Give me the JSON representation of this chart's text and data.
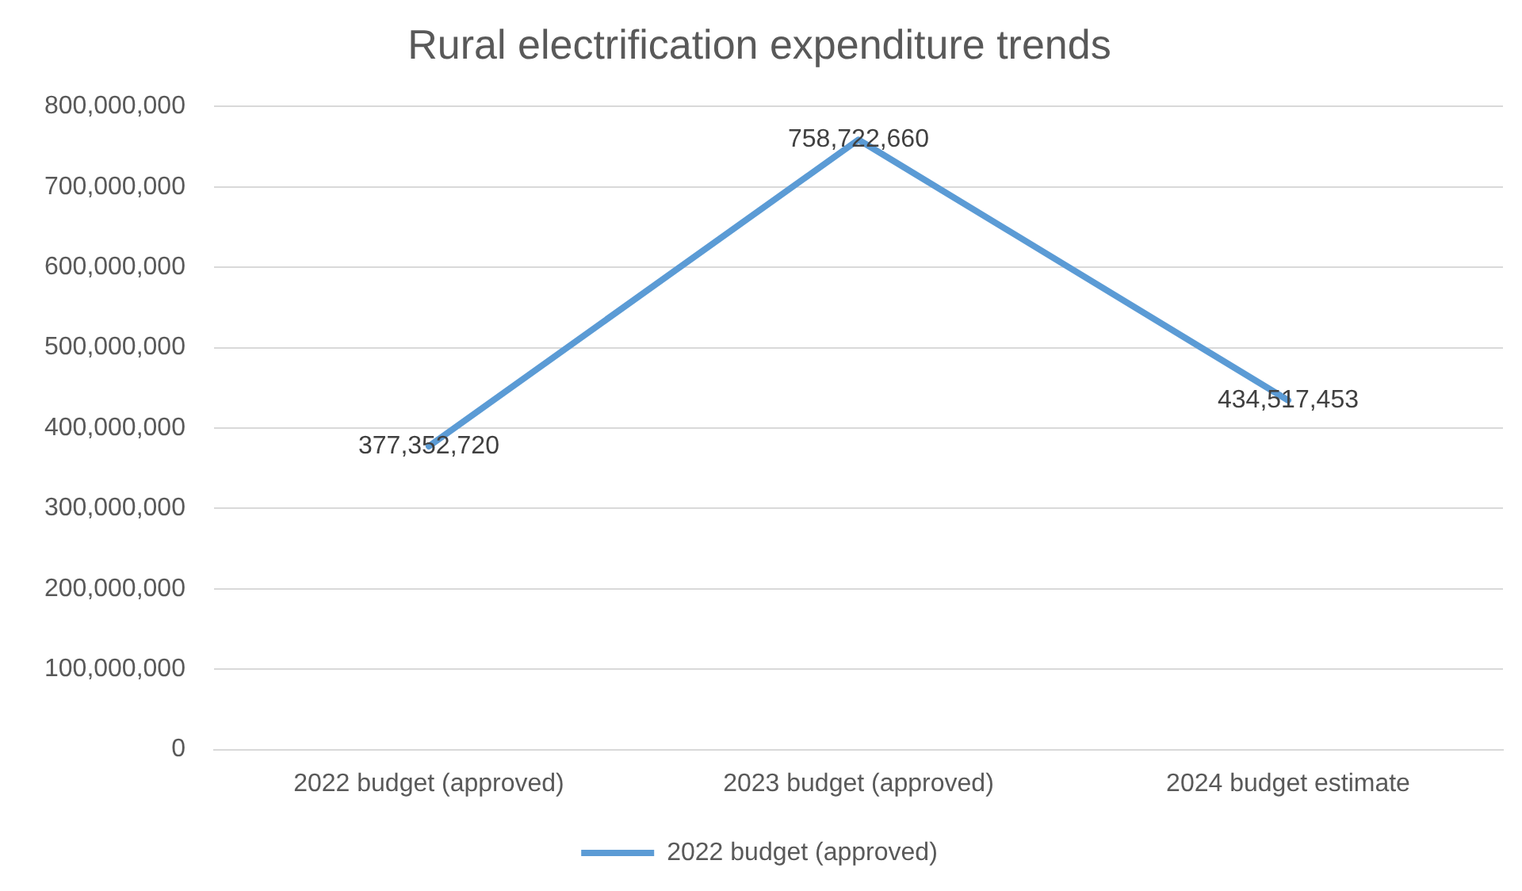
{
  "chart_data": {
    "type": "line",
    "title": "Rural electrification expenditure trends",
    "categories": [
      "2022 budget (approved)",
      "2023 budget (approved)",
      "2024 budget estimate"
    ],
    "series": [
      {
        "name": "2022 budget (approved)",
        "color": "#5b9bd5",
        "values": [
          377352720,
          758722660,
          434517453
        ],
        "value_labels": [
          "377,352,720",
          "758,722,660",
          "434,517,453"
        ]
      }
    ],
    "ylim": [
      0,
      800000000
    ],
    "yticks": [
      0,
      {
        "value": 100000000,
        "label": "100,000,000"
      },
      {
        "value": 200000000,
        "label": "200,000,000"
      },
      {
        "value": 300000000,
        "label": "300,000,000"
      },
      {
        "value": 400000000,
        "label": "400,000,000"
      },
      {
        "value": 500000000,
        "label": "500,000,000"
      },
      {
        "value": 600000000,
        "label": "600,000,000"
      },
      {
        "value": 700000000,
        "label": "700,000,000"
      },
      {
        "value": 800000000,
        "label": "800,000,000"
      }
    ],
    "grid": "y",
    "legend": "bottom",
    "marker": "none",
    "line_style": "solid"
  }
}
